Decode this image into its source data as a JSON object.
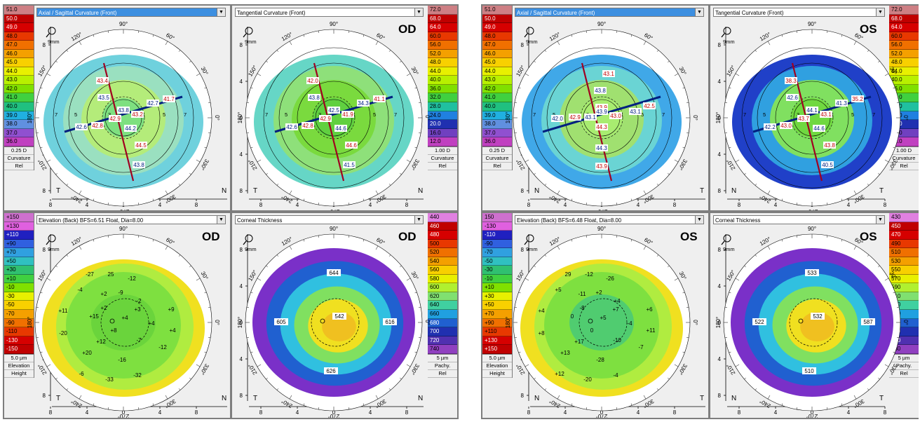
{
  "panels": {
    "od": {
      "curv_axial": {
        "select": "Axial / Sagittal Curvature (Front)",
        "scale": [
          "51.0",
          "50.0",
          "49.0",
          "48.0",
          "47.0",
          "46.0",
          "45.0",
          "44.0",
          "43.0",
          "42.0",
          "41.0",
          "40.0",
          "39.0",
          "38.0",
          "37.0",
          "36.0"
        ],
        "colors": [
          "#ce7f84",
          "#c00000",
          "#d60000",
          "#e83800",
          "#f07000",
          "#f4a000",
          "#f8d000",
          "#e8f000",
          "#b8f000",
          "#80e000",
          "#40d040",
          "#20c080",
          "#20b0e0",
          "#6090e0",
          "#9050d0",
          "#c040c0"
        ],
        "foot": [
          "0.25 D",
          "Curvature",
          "Rel"
        ],
        "left": "T",
        "right": "N",
        "map_colors": [
          "#6fd1dd",
          "#9ae0c0",
          "#b4ec7a",
          "#7ee080"
        ],
        "labels": [
          "43.4",
          "43.5",
          "42.9",
          "43.8",
          "43.2",
          "42.7",
          "41.7",
          "42.6",
          "42.8",
          "44.2",
          "44.5",
          "43.8"
        ]
      },
      "curv_tangential": {
        "select": "Tangential Curvature (Front)",
        "eye": "OD",
        "scale": [
          "72.0",
          "68.0",
          "64.0",
          "60.0",
          "56.0",
          "52.0",
          "48.0",
          "44.0",
          "40.0",
          "36.0",
          "32.0",
          "28.0",
          "24.0",
          "20.0",
          "16.0",
          "12.0"
        ],
        "colors": [
          "#ce7f84",
          "#c00000",
          "#d60000",
          "#e83800",
          "#f07000",
          "#f4a000",
          "#f8d000",
          "#e8f000",
          "#b8f000",
          "#80e000",
          "#40d040",
          "#20c0a0",
          "#2080e0",
          "#2030b0",
          "#7040c0",
          "#c040c0"
        ],
        "foot": [
          "1.00 D",
          "Curvature",
          "Rel"
        ],
        "left": "T",
        "right": "N",
        "map_colors": [
          "#66d6c6",
          "#8ee07a",
          "#7ada3e",
          "#60d040"
        ],
        "labels": [
          "42.0",
          "43.8",
          "42.9",
          "42.5",
          "41.9",
          "34.3",
          "41.1",
          "42.6",
          "42.8",
          "44.6",
          "44.6",
          "41.5"
        ]
      },
      "elevation": {
        "select": "Elevation (Back)  BFS=6.51 Float, Dia=8.00",
        "eye": "OD",
        "scale": [
          "+150",
          "+130",
          "+110",
          "+90",
          "+70",
          "+50",
          "+30",
          "+10",
          "-10",
          "-30",
          "-50",
          "-70",
          "-90",
          "-110",
          "-130",
          "-150"
        ],
        "colors": [
          "#ce70ce",
          "#e060e0",
          "#2020c0",
          "#3060e0",
          "#30a0e0",
          "#30c0c0",
          "#30c070",
          "#40d040",
          "#80e000",
          "#e8f000",
          "#f8d000",
          "#f4a000",
          "#f07000",
          "#e83800",
          "#d60000",
          "#c00000"
        ],
        "foot": [
          "5.0 µm",
          "Elevation",
          "Height"
        ],
        "left": "T",
        "right": "N",
        "map_colors": [
          "#f0e020",
          "#b0ec40",
          "#7ee040",
          "#6ad43c"
        ],
        "labels": [
          "-27",
          "25",
          "-12",
          "-4",
          "+2",
          "-9",
          "+2",
          "-2",
          "+11",
          "+15",
          "+4",
          "+3",
          "+9",
          "-20",
          "+8",
          "+4",
          "+4",
          "+12",
          "-7",
          "-12",
          "+20",
          "-6",
          "-16",
          "-33",
          "-32"
        ]
      },
      "thickness": {
        "select": "Corneal Thickness",
        "eye": "OD",
        "scale": [
          "440",
          "460",
          "480",
          "500",
          "520",
          "540",
          "560",
          "580",
          "600",
          "620",
          "640",
          "660",
          "680",
          "700",
          "720",
          "740"
        ],
        "colors": [
          "#e080e0",
          "#c00000",
          "#d60000",
          "#e83800",
          "#f07000",
          "#f4a000",
          "#f8d000",
          "#e8f000",
          "#b0f030",
          "#80e070",
          "#40d0a0",
          "#20a0e0",
          "#2060d0",
          "#2030b0",
          "#5030b0",
          "#9040c0"
        ],
        "foot": [
          "5 µm",
          "Pachy.",
          "Rel"
        ],
        "left": "T",
        "right": "N",
        "map_colors": [
          "#7a30c8",
          "#2060d0",
          "#30c0e0",
          "#80e060",
          "#f0e020",
          "#f0c020"
        ],
        "labels": [
          "644",
          "605",
          "542",
          "616",
          "626"
        ]
      }
    },
    "os": {
      "curv_axial": {
        "select": "Axial / Sagittal Curvature (Front)",
        "scale": [
          "51.0",
          "50.0",
          "49.0",
          "48.0",
          "47.0",
          "46.0",
          "45.0",
          "44.0",
          "43.0",
          "42.0",
          "41.0",
          "40.0",
          "39.0",
          "38.0",
          "37.0",
          "36.0"
        ],
        "colors": [
          "#ce7f84",
          "#c00000",
          "#d60000",
          "#e83800",
          "#f07000",
          "#f4a000",
          "#f8d000",
          "#e8f000",
          "#b8f000",
          "#80e000",
          "#40d040",
          "#20c080",
          "#20b0e0",
          "#6090e0",
          "#9050d0",
          "#c040c0"
        ],
        "foot": [
          "0.25 D",
          "Curvature",
          "Rel"
        ],
        "left": "N",
        "right": "T",
        "map_colors": [
          "#40a8e8",
          "#6ad4d4",
          "#a0e070",
          "#a8ec70"
        ],
        "labels": [
          "43.1",
          "43.8",
          "43.9",
          "43.9",
          "43.0",
          "43.1",
          "42.5",
          "42.0",
          "42.9",
          "43.1",
          "44.3",
          "44.3",
          "43.9"
        ]
      },
      "curv_tangential": {
        "select": "Tangential Curvature (Front)",
        "eye": "OS",
        "scale": [
          "72.0",
          "68.0",
          "64.0",
          "60.0",
          "56.0",
          "52.0",
          "48.0",
          "44.0",
          "40.0",
          "36.0",
          "32.0",
          "28.0",
          "24.0",
          "20.0",
          "16.0",
          "12.0"
        ],
        "colors": [
          "#ce7f84",
          "#c00000",
          "#d60000",
          "#e83800",
          "#f07000",
          "#f4a000",
          "#f8d000",
          "#e8f000",
          "#b8f000",
          "#80e000",
          "#40d040",
          "#20c0a0",
          "#2080e0",
          "#2030b0",
          "#7040c0",
          "#c040c0"
        ],
        "foot": [
          "1.00 D",
          "Curvature",
          "Rel"
        ],
        "left": "N",
        "right": "T",
        "map_colors": [
          "#2040c8",
          "#30a0e0",
          "#80e060",
          "#70d840"
        ],
        "labels": [
          "38.3",
          "42.6",
          "43.7",
          "44.1",
          "43.1",
          "41.3",
          "35.2",
          "42.2",
          "43.0",
          "44.6",
          "43.8",
          "40.5"
        ]
      },
      "elevation": {
        "select": "Elevation (Back)  BFS=6.48 Float, Dia=8.00",
        "eye": "OS",
        "scale": [
          "150",
          "-130",
          "-110",
          "-90",
          "-70",
          "-50",
          "-30",
          "-10",
          "+10",
          "+30",
          "+50",
          "+70",
          "+90",
          "+110",
          "+130",
          "+150"
        ],
        "colors": [
          "#ce70ce",
          "#e060e0",
          "#2020c0",
          "#3060e0",
          "#30a0e0",
          "#30c0c0",
          "#30c070",
          "#40d040",
          "#80e000",
          "#e8f000",
          "#f8d000",
          "#f4a000",
          "#f07000",
          "#e83800",
          "#d60000",
          "#c00000"
        ],
        "foot": [
          "5.0 µm",
          "Elevation",
          "Height"
        ],
        "left": "N",
        "right": "T",
        "map_colors": [
          "#f0e020",
          "#b0ec40",
          "#7ee040",
          "#50cc70"
        ],
        "labels": [
          "29",
          "-12",
          "-26",
          "+5",
          "-11",
          "+2",
          "-8",
          "+4",
          "+4",
          "0",
          "+5",
          "+7",
          "+6",
          "+8",
          "0",
          "-4",
          "+11",
          "+17",
          "-10",
          "-7",
          "+13",
          "+12",
          "-28",
          "-20",
          "-4"
        ]
      },
      "thickness": {
        "select": "Corneal Thickness",
        "eye": "OS",
        "scale": [
          "430",
          "450",
          "470",
          "490",
          "510",
          "530",
          "550",
          "570",
          "590",
          "610",
          "630",
          "650",
          "670",
          "690",
          "710",
          "730"
        ],
        "colors": [
          "#e080e0",
          "#c00000",
          "#d60000",
          "#e83800",
          "#f07000",
          "#f4a000",
          "#f8d000",
          "#e8f000",
          "#b0f030",
          "#80e070",
          "#40d0a0",
          "#20a0e0",
          "#2060d0",
          "#2030b0",
          "#5030b0",
          "#9040c0"
        ],
        "foot": [
          "5 µm",
          "Pachy.",
          "Rel"
        ],
        "left": "N",
        "right": "T",
        "map_colors": [
          "#7a30c8",
          "#2060d0",
          "#30c0e0",
          "#80e060",
          "#f0e020",
          "#f0c020"
        ],
        "labels": [
          "533",
          "522",
          "532",
          "587",
          "510"
        ]
      }
    }
  },
  "common": {
    "zoom": "9mm",
    "angles": [
      "90°",
      "60°",
      "30°",
      "0°",
      "330°",
      "300°",
      "270°",
      "240°",
      "210°",
      "180°",
      "150°",
      "120°"
    ],
    "yticks": [
      "8",
      "4",
      "0",
      "4",
      "8"
    ],
    "xticks": [
      "8",
      "4",
      "0",
      "4",
      "8"
    ]
  }
}
